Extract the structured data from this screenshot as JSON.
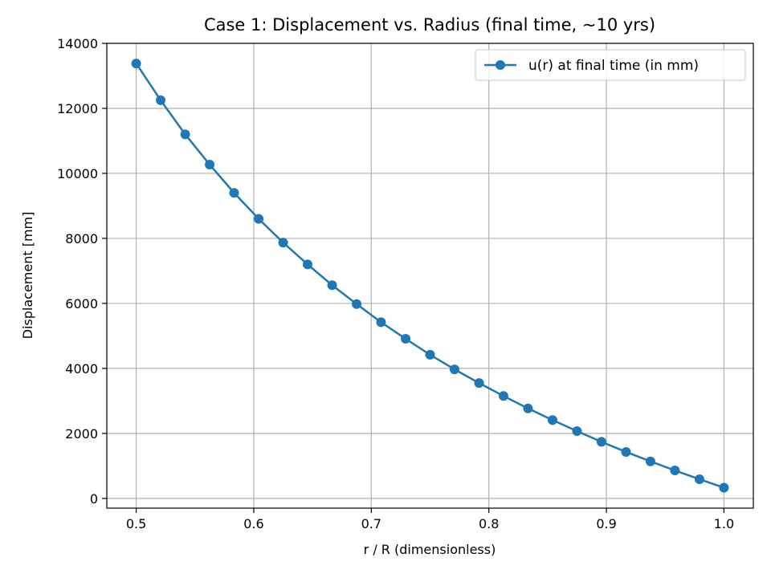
{
  "chart_data": {
    "type": "line",
    "title": "Case 1: Displacement vs. Radius (final time, ~10 yrs)",
    "xlabel": "r / R (dimensionless)",
    "ylabel": "Displacement [mm]",
    "xlim": [
      0.475,
      1.025
    ],
    "ylim": [
      -300,
      14000
    ],
    "xticks": [
      0.5,
      0.6,
      0.7,
      0.8,
      0.9,
      1.0
    ],
    "xtick_labels": [
      "0.5",
      "0.6",
      "0.7",
      "0.8",
      "0.9",
      "1.0"
    ],
    "yticks": [
      0,
      2000,
      4000,
      6000,
      8000,
      10000,
      12000,
      14000
    ],
    "ytick_labels": [
      "0",
      "2000",
      "4000",
      "6000",
      "8000",
      "10000",
      "12000",
      "14000"
    ],
    "grid": true,
    "legend_position": "top-right",
    "series": [
      {
        "name": "u(r) at final time (in mm)",
        "color": "#1f77b4",
        "marker": "circle",
        "x": [
          0.5,
          0.5208,
          0.5417,
          0.5625,
          0.5833,
          0.6042,
          0.625,
          0.6458,
          0.6667,
          0.6875,
          0.7083,
          0.7292,
          0.75,
          0.7708,
          0.7917,
          0.8125,
          0.8333,
          0.8542,
          0.875,
          0.8958,
          0.9167,
          0.9375,
          0.9583,
          0.9792,
          1.0
        ],
        "y": [
          13380,
          12250,
          11200,
          10270,
          9400,
          8600,
          7870,
          7200,
          6560,
          5980,
          5420,
          4910,
          4420,
          3970,
          3550,
          3150,
          2770,
          2410,
          2070,
          1740,
          1430,
          1140,
          860,
          590,
          330
        ]
      }
    ]
  }
}
